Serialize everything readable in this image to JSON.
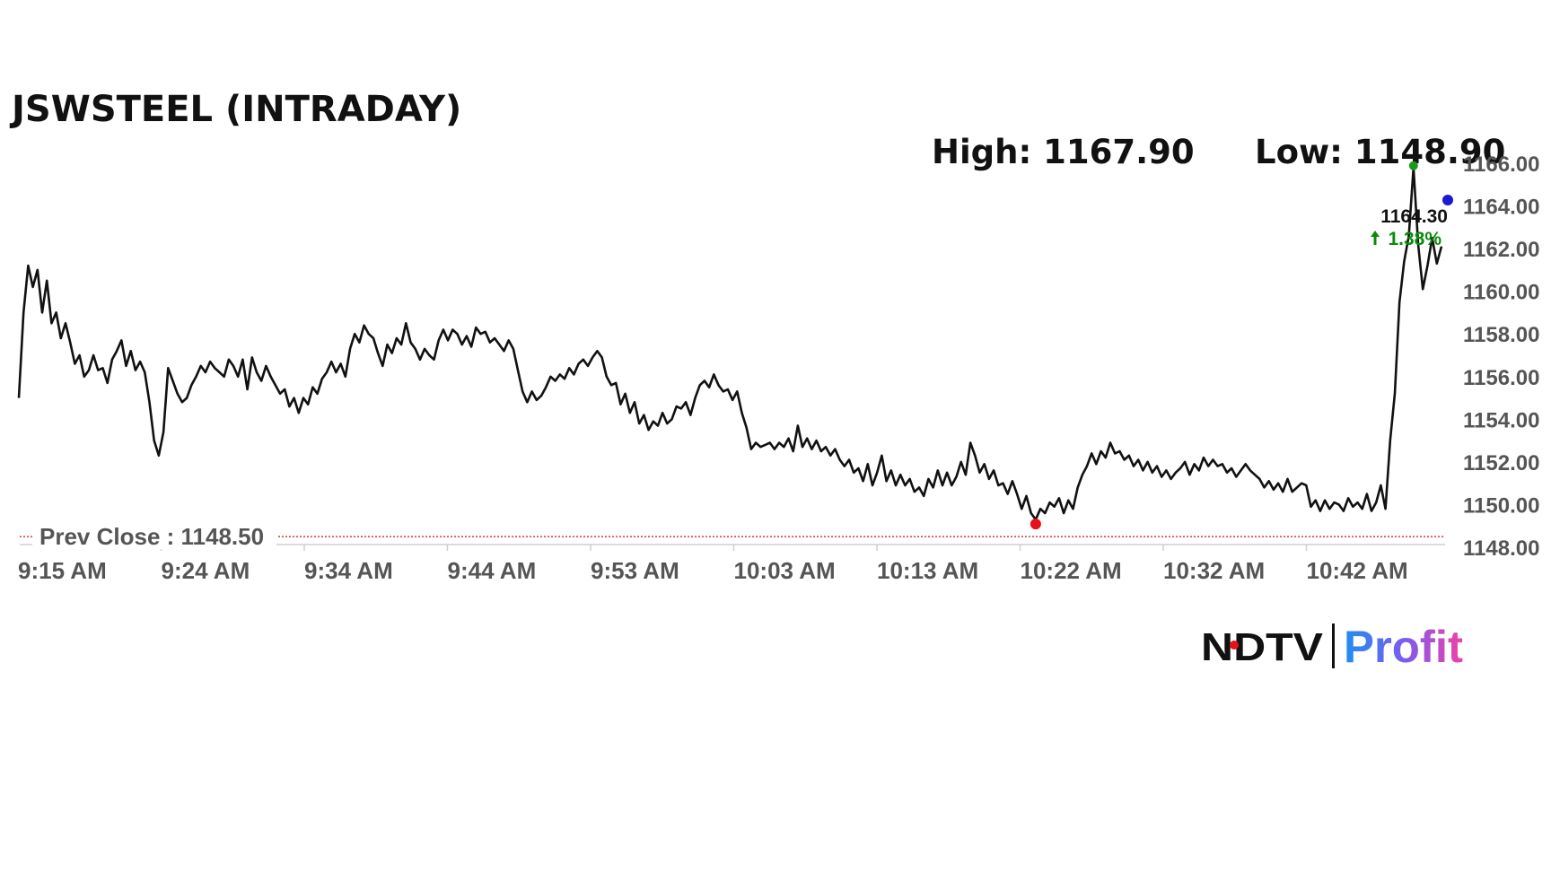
{
  "chart_data": {
    "type": "line",
    "title": "JSWSTEEL (INTRADAY)",
    "high_label": "High: 1167.90",
    "low_label": "Low: 1148.90",
    "prev_close_label": "Prev Close : 1148.50",
    "prev_close": 1148.5,
    "last_price_label": "1164.30",
    "change_label": "1.38%",
    "ylim": [
      1148,
      1166
    ],
    "yticks": [
      "1166.00",
      "1164.00",
      "1162.00",
      "1160.00",
      "1158.00",
      "1156.00",
      "1154.00",
      "1152.00",
      "1150.00",
      "1148.00"
    ],
    "xticks": [
      "9:15 AM",
      "9:24 AM",
      "9:34 AM",
      "9:44 AM",
      "9:53 AM",
      "10:03 AM",
      "10:13 AM",
      "10:22 AM",
      "10:32 AM",
      "10:42 AM"
    ],
    "grid": false,
    "legend": "none",
    "series": [
      {
        "values": [
          1155,
          1159,
          1161.2,
          1160.2,
          1161,
          1159,
          1160.5,
          1158.5,
          1159,
          1157.8,
          1158.5,
          1157.6,
          1156.6,
          1157,
          1156,
          1156.3,
          1157,
          1156.3,
          1156.4,
          1155.7,
          1156.8,
          1157.2,
          1157.7,
          1156.5,
          1157.2,
          1156.3,
          1156.7,
          1156.2,
          1154.8,
          1153,
          1152.3,
          1153.4,
          1156.4,
          1155.8,
          1155.2,
          1154.8,
          1155,
          1155.6,
          1156,
          1156.5,
          1156.2,
          1156.7,
          1156.4,
          1156.2,
          1156,
          1156.8,
          1156.5,
          1156,
          1156.8,
          1155.4,
          1156.9,
          1156.2,
          1155.8,
          1156.5,
          1156,
          1155.6,
          1155.2,
          1155.4,
          1154.6,
          1155,
          1154.3,
          1155,
          1154.7,
          1155.5,
          1155.2,
          1155.9,
          1156.2,
          1156.7,
          1156.2,
          1156.6,
          1156,
          1157.3,
          1158,
          1157.6,
          1158.4,
          1158,
          1157.8,
          1157.1,
          1156.5,
          1157.5,
          1157.1,
          1157.8,
          1157.5,
          1158.5,
          1157.6,
          1157.3,
          1156.8,
          1157.3,
          1157,
          1156.8,
          1157.7,
          1158.2,
          1157.7,
          1158.2,
          1158,
          1157.5,
          1157.9,
          1157.4,
          1158.3,
          1158,
          1158.1,
          1157.6,
          1157.8,
          1157.5,
          1157.2,
          1157.7,
          1157.3,
          1156.3,
          1155.3,
          1154.8,
          1155.3,
          1154.9,
          1155.1,
          1155.5,
          1156,
          1155.8,
          1156.1,
          1155.9,
          1156.4,
          1156.1,
          1156.6,
          1156.8,
          1156.5,
          1156.9,
          1157.2,
          1156.9,
          1156,
          1155.6,
          1155.7,
          1154.7,
          1155.2,
          1154.3,
          1154.8,
          1153.8,
          1154.2,
          1153.5,
          1153.9,
          1153.7,
          1154.3,
          1153.8,
          1154,
          1154.6,
          1154.5,
          1154.8,
          1154.2,
          1155,
          1155.6,
          1155.8,
          1155.5,
          1156.1,
          1155.6,
          1155.3,
          1155.4,
          1154.9,
          1155.3,
          1154.3,
          1153.6,
          1152.6,
          1152.9,
          1152.7,
          1152.8,
          1152.9,
          1152.6,
          1152.9,
          1152.7,
          1153.1,
          1152.5,
          1153.7,
          1152.7,
          1153.1,
          1152.6,
          1153,
          1152.5,
          1152.7,
          1152.3,
          1152.6,
          1152.1,
          1151.8,
          1152.1,
          1151.5,
          1151.7,
          1151.1,
          1151.9,
          1150.9,
          1151.5,
          1152.3,
          1151.1,
          1151.6,
          1150.9,
          1151.4,
          1150.9,
          1151.2,
          1150.6,
          1150.8,
          1150.4,
          1151.2,
          1150.8,
          1151.6,
          1150.9,
          1151.5,
          1150.9,
          1151.3,
          1152,
          1151.4,
          1152.9,
          1152.3,
          1151.5,
          1151.9,
          1151.2,
          1151.6,
          1150.9,
          1151,
          1150.5,
          1151.1,
          1150.5,
          1149.8,
          1150.4,
          1149.6,
          1149.3,
          1149.8,
          1149.6,
          1150.1,
          1149.9,
          1150.3,
          1149.6,
          1150.2,
          1149.8,
          1150.8,
          1151.4,
          1151.8,
          1152.4,
          1151.9,
          1152.5,
          1152.2,
          1152.9,
          1152.4,
          1152.5,
          1152.1,
          1152.3,
          1151.8,
          1152.1,
          1151.6,
          1152,
          1151.5,
          1151.8,
          1151.3,
          1151.6,
          1151.2,
          1151.5,
          1151.7,
          1152,
          1151.4,
          1151.9,
          1151.6,
          1152.2,
          1151.8,
          1152.1,
          1151.8,
          1151.9,
          1151.5,
          1151.7,
          1151.3,
          1151.6,
          1151.9,
          1151.6,
          1151.4,
          1151.2,
          1150.8,
          1151.1,
          1150.7,
          1151,
          1150.6,
          1151.2,
          1150.6,
          1150.8,
          1151,
          1150.9,
          1149.9,
          1150.2,
          1149.7,
          1150.2,
          1149.8,
          1150.1,
          1150,
          1149.7,
          1150.3,
          1149.9,
          1150.1,
          1149.8,
          1150.5,
          1149.7,
          1150.1,
          1150.9,
          1149.8,
          1153,
          1155.2,
          1159.5,
          1161.4,
          1162.6,
          1165.8,
          1162.2,
          1160.1,
          1161.2,
          1162.5,
          1161.3,
          1162.1
        ]
      }
    ]
  },
  "branding": {
    "logo_left": "NDTV",
    "logo_right": "Profit"
  }
}
